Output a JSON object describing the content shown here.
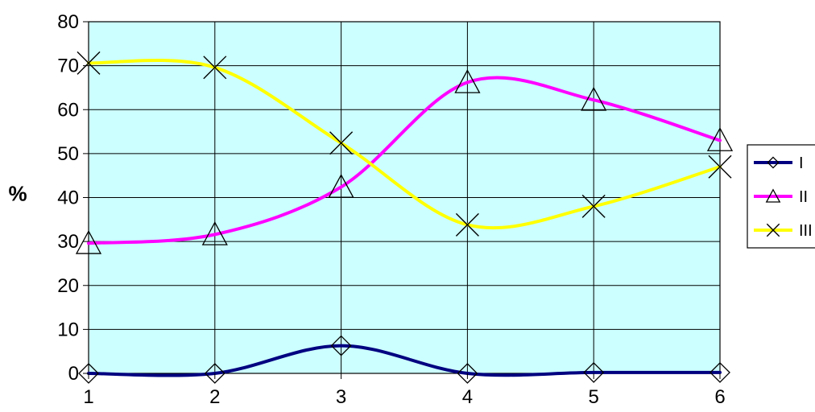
{
  "chart_data": {
    "type": "line",
    "title": "",
    "xlabel": "",
    "ylabel": "%",
    "x": [
      1,
      2,
      3,
      4,
      5,
      6
    ],
    "xlim": [
      1,
      6
    ],
    "ylim": [
      0,
      80
    ],
    "y_ticks": [
      0,
      10,
      20,
      30,
      40,
      50,
      60,
      70,
      80
    ],
    "grid": true,
    "smooth": true,
    "plot_background": "#ccffff",
    "legend_position": "right",
    "series": [
      {
        "name": "I",
        "values": [
          0,
          0,
          6.3,
          0,
          0.2,
          0.2
        ],
        "color": "#000080",
        "marker": "diamond"
      },
      {
        "name": "II",
        "values": [
          29.6,
          31.6,
          42.4,
          66.2,
          62.2,
          53
        ],
        "color": "#ff00ff",
        "marker": "triangle"
      },
      {
        "name": "III",
        "values": [
          70.6,
          69.6,
          52.4,
          33.8,
          38,
          47
        ],
        "color": "#ffff00",
        "marker": "x"
      }
    ]
  }
}
